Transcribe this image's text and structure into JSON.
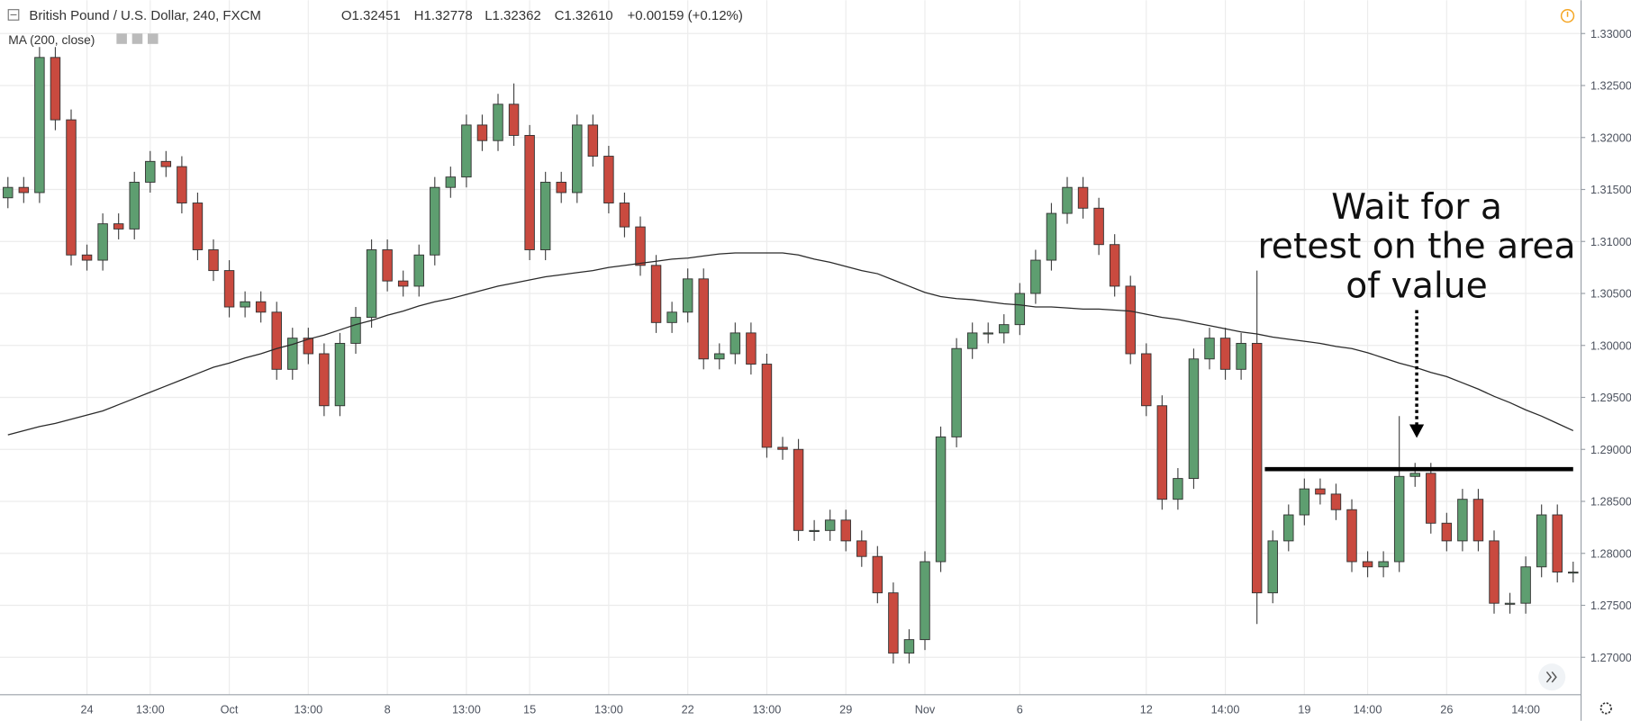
{
  "header": {
    "symbol": "British Pound / U.S. Dollar, 240, FXCM",
    "open": "O1.32451",
    "high": "H1.32778",
    "low": "L1.32362",
    "close": "C1.32610",
    "change": "+0.00159 (+0.12%)"
  },
  "chart_data": {
    "type": "candlestick",
    "categories": [
      null,
      null,
      null,
      null,
      null,
      "24",
      null,
      null,
      null,
      "13:00",
      null,
      null,
      null,
      null,
      "Oct",
      null,
      null,
      null,
      null,
      "13:00",
      null,
      null,
      null,
      null,
      "8",
      null,
      null,
      null,
      null,
      "13:00",
      null,
      null,
      null,
      "15",
      null,
      null,
      null,
      null,
      "13:00",
      null,
      null,
      null,
      null,
      "22",
      null,
      null,
      null,
      null,
      "13:00",
      null,
      null,
      null,
      null,
      "29",
      null,
      null,
      null,
      null,
      "Nov",
      null,
      null,
      null,
      null,
      null,
      "6",
      null,
      null,
      null,
      null,
      null,
      null,
      null,
      "12",
      null,
      null,
      null,
      null,
      "14:00",
      null,
      null,
      null,
      null,
      "19",
      null,
      null,
      null,
      "14:00",
      null,
      null,
      null,
      null,
      "26",
      null,
      null,
      null,
      null,
      "14:00",
      null,
      null,
      null
    ],
    "open": [
      1.3142,
      1.3152,
      1.3147,
      1.3277,
      1.3217,
      1.3087,
      1.3082,
      1.3117,
      1.3112,
      1.3157,
      1.3177,
      1.3172,
      1.3137,
      1.3092,
      1.3072,
      1.3037,
      1.3042,
      1.3032,
      1.2977,
      1.3007,
      1.2992,
      1.2942,
      1.3002,
      1.3027,
      1.3092,
      1.3062,
      1.3057,
      1.3087,
      1.3152,
      1.3162,
      1.3212,
      1.3197,
      1.3232,
      1.3202,
      1.3092,
      1.3157,
      1.3147,
      1.3212,
      1.3182,
      1.3137,
      1.3114,
      1.3077,
      1.3022,
      1.3032,
      1.3064,
      1.2987,
      1.2992,
      1.3012,
      1.2982,
      1.2902,
      1.29,
      1.2822,
      1.2822,
      1.2832,
      1.2812,
      1.2797,
      1.2762,
      1.2704,
      1.2717,
      1.2792,
      1.2912,
      1.2997,
      1.3012,
      1.3012,
      1.302,
      1.305,
      1.3082,
      1.3127,
      1.3152,
      1.3132,
      1.3097,
      1.3057,
      1.2992,
      1.2942,
      1.2852,
      1.2872,
      1.2987,
      1.3007,
      1.2977,
      1.3002,
      1.2762,
      1.2812,
      1.2837,
      1.2862,
      1.2857,
      1.2842,
      1.2792,
      1.2787,
      1.2792,
      1.2874,
      1.2877,
      1.2829,
      1.2812,
      1.2852,
      1.2812,
      1.2752,
      1.2752,
      1.2787,
      1.2837,
      1.2782
    ],
    "high": [
      1.3162,
      1.3162,
      1.3287,
      1.3287,
      1.3227,
      1.3097,
      1.3127,
      1.3127,
      1.3167,
      1.3187,
      1.3187,
      1.3182,
      1.3147,
      1.3102,
      1.3082,
      1.3052,
      1.3052,
      1.3042,
      1.3017,
      1.3017,
      1.3002,
      1.3012,
      1.3037,
      1.3102,
      1.3102,
      1.3072,
      1.3097,
      1.3162,
      1.3172,
      1.3222,
      1.3222,
      1.3242,
      1.3252,
      1.3212,
      1.3167,
      1.3167,
      1.3222,
      1.3222,
      1.3192,
      1.3147,
      1.3124,
      1.3087,
      1.3042,
      1.3074,
      1.3074,
      1.3002,
      1.3022,
      1.3022,
      1.2992,
      1.2912,
      1.291,
      1.2832,
      1.2842,
      1.2842,
      1.2822,
      1.2807,
      1.2772,
      1.2727,
      1.2802,
      1.2922,
      1.3007,
      1.3022,
      1.3022,
      1.303,
      1.306,
      1.3092,
      1.3137,
      1.3162,
      1.3162,
      1.3142,
      1.3107,
      1.3067,
      1.3002,
      1.2952,
      1.2882,
      1.2997,
      1.3017,
      1.3017,
      1.3012,
      1.3072,
      1.2822,
      1.2847,
      1.2872,
      1.2872,
      1.2867,
      1.2852,
      1.2802,
      1.2802,
      1.2932,
      1.2887,
      1.2887,
      1.2839,
      1.2862,
      1.2862,
      1.2822,
      1.2762,
      1.2797,
      1.2847,
      1.2847,
      1.2792
    ],
    "low": [
      1.3132,
      1.3137,
      1.3137,
      1.3207,
      1.3077,
      1.3072,
      1.3072,
      1.3102,
      1.3102,
      1.3147,
      1.3162,
      1.3127,
      1.3082,
      1.3062,
      1.3027,
      1.3027,
      1.3022,
      1.2967,
      1.2967,
      1.2982,
      1.2932,
      1.2932,
      1.2992,
      1.3017,
      1.3052,
      1.3047,
      1.3047,
      1.3077,
      1.3142,
      1.3152,
      1.3187,
      1.3187,
      1.3192,
      1.3082,
      1.3082,
      1.3137,
      1.3137,
      1.3172,
      1.3127,
      1.3104,
      1.3067,
      1.3012,
      1.3012,
      1.3022,
      1.2977,
      1.2977,
      1.2982,
      1.2972,
      1.2892,
      1.289,
      1.2812,
      1.2812,
      1.2812,
      1.2802,
      1.2787,
      1.2752,
      1.2694,
      1.2694,
      1.2707,
      1.2782,
      1.2902,
      1.2987,
      1.3002,
      1.3002,
      1.301,
      1.304,
      1.3072,
      1.3117,
      1.3122,
      1.3087,
      1.3047,
      1.2982,
      1.2932,
      1.2842,
      1.2842,
      1.2862,
      1.2977,
      1.2967,
      1.2967,
      1.2732,
      1.2752,
      1.2802,
      1.2827,
      1.2847,
      1.2832,
      1.2782,
      1.2777,
      1.2777,
      1.2782,
      1.2864,
      1.2819,
      1.2802,
      1.2802,
      1.2802,
      1.2742,
      1.2742,
      1.2742,
      1.2777,
      1.2772,
      1.2772
    ],
    "close": [
      1.3152,
      1.3147,
      1.3277,
      1.3217,
      1.3087,
      1.3082,
      1.3117,
      1.3112,
      1.3157,
      1.3177,
      1.3172,
      1.3137,
      1.3092,
      1.3072,
      1.3037,
      1.3042,
      1.3032,
      1.2977,
      1.3007,
      1.2992,
      1.2942,
      1.3002,
      1.3027,
      1.3092,
      1.3062,
      1.3057,
      1.3087,
      1.3152,
      1.3162,
      1.3212,
      1.3197,
      1.3232,
      1.3202,
      1.3092,
      1.3157,
      1.3147,
      1.3212,
      1.3182,
      1.3137,
      1.3114,
      1.3077,
      1.3022,
      1.3032,
      1.3064,
      1.2987,
      1.2992,
      1.3012,
      1.2982,
      1.2902,
      1.29,
      1.2822,
      1.2822,
      1.2832,
      1.2812,
      1.2797,
      1.2762,
      1.2704,
      1.2717,
      1.2792,
      1.2912,
      1.2997,
      1.3012,
      1.3012,
      1.302,
      1.305,
      1.3082,
      1.3127,
      1.3152,
      1.3132,
      1.3097,
      1.3057,
      1.2992,
      1.2942,
      1.2852,
      1.2872,
      1.2987,
      1.3007,
      1.2977,
      1.3002,
      1.2762,
      1.2812,
      1.2837,
      1.2862,
      1.2857,
      1.2842,
      1.2792,
      1.2787,
      1.2792,
      1.2874,
      1.2877,
      1.2829,
      1.2812,
      1.2852,
      1.2812,
      1.2752,
      1.2752,
      1.2787,
      1.2837,
      1.2782,
      1.2782
    ],
    "up_color": "#5e9e70",
    "down_color": "#c94a3f",
    "ma": {
      "name": "MA (200, close)",
      "color": "#2a2a2a",
      "values": [
        1.2914,
        1.2918,
        1.2922,
        1.2925,
        1.2929,
        1.2933,
        1.2937,
        1.2943,
        1.2949,
        1.2955,
        1.2961,
        1.2967,
        1.2973,
        1.2979,
        1.2983,
        1.2988,
        1.2992,
        1.2997,
        1.3001,
        1.3006,
        1.301,
        1.3015,
        1.302,
        1.3024,
        1.3029,
        1.3033,
        1.3038,
        1.3042,
        1.3045,
        1.3049,
        1.3053,
        1.3057,
        1.306,
        1.3063,
        1.3066,
        1.3068,
        1.307,
        1.3072,
        1.3075,
        1.3077,
        1.3079,
        1.3081,
        1.3083,
        1.3084,
        1.3086,
        1.3088,
        1.3089,
        1.3089,
        1.3089,
        1.3089,
        1.3087,
        1.3083,
        1.308,
        1.3076,
        1.3072,
        1.3069,
        1.3063,
        1.3057,
        1.3051,
        1.3047,
        1.3045,
        1.3044,
        1.3042,
        1.304,
        1.3039,
        1.3037,
        1.3037,
        1.3036,
        1.3035,
        1.3035,
        1.3034,
        1.3033,
        1.303,
        1.3027,
        1.3025,
        1.3022,
        1.3019,
        1.3016,
        1.3013,
        1.3011,
        1.3008,
        1.3006,
        1.3004,
        1.3002,
        1.2999,
        1.2997,
        1.2993,
        1.2988,
        1.2983,
        1.2979,
        1.2974,
        1.297,
        1.2964,
        1.2958,
        1.2951,
        1.2945,
        1.2938,
        1.2932,
        1.2925,
        1.2918
      ]
    },
    "level": {
      "value": 1.2881,
      "x": [
        80,
        99
      ],
      "color": "#000000"
    },
    "annotation": [
      "Wait for a",
      "retest on the area",
      "of value"
    ],
    "ylim": [
      1.2664,
      1.3332
    ],
    "yticks": [
      {
        "value": 1.33,
        "label": "1.33000"
      },
      {
        "value": 1.325,
        "label": "1.32500"
      },
      {
        "value": 1.32,
        "label": "1.32000"
      },
      {
        "value": 1.315,
        "label": "1.31500"
      },
      {
        "value": 1.31,
        "label": "1.31000"
      },
      {
        "value": 1.305,
        "label": "1.30500"
      },
      {
        "value": 1.3,
        "label": "1.30000"
      },
      {
        "value": 1.295,
        "label": "1.29500"
      },
      {
        "value": 1.29,
        "label": "1.29000"
      },
      {
        "value": 1.285,
        "label": "1.28500"
      },
      {
        "value": 1.28,
        "label": "1.28000"
      },
      {
        "value": 1.275,
        "label": "1.27500"
      },
      {
        "value": 1.27,
        "label": "1.27000"
      }
    ],
    "grid": true
  }
}
